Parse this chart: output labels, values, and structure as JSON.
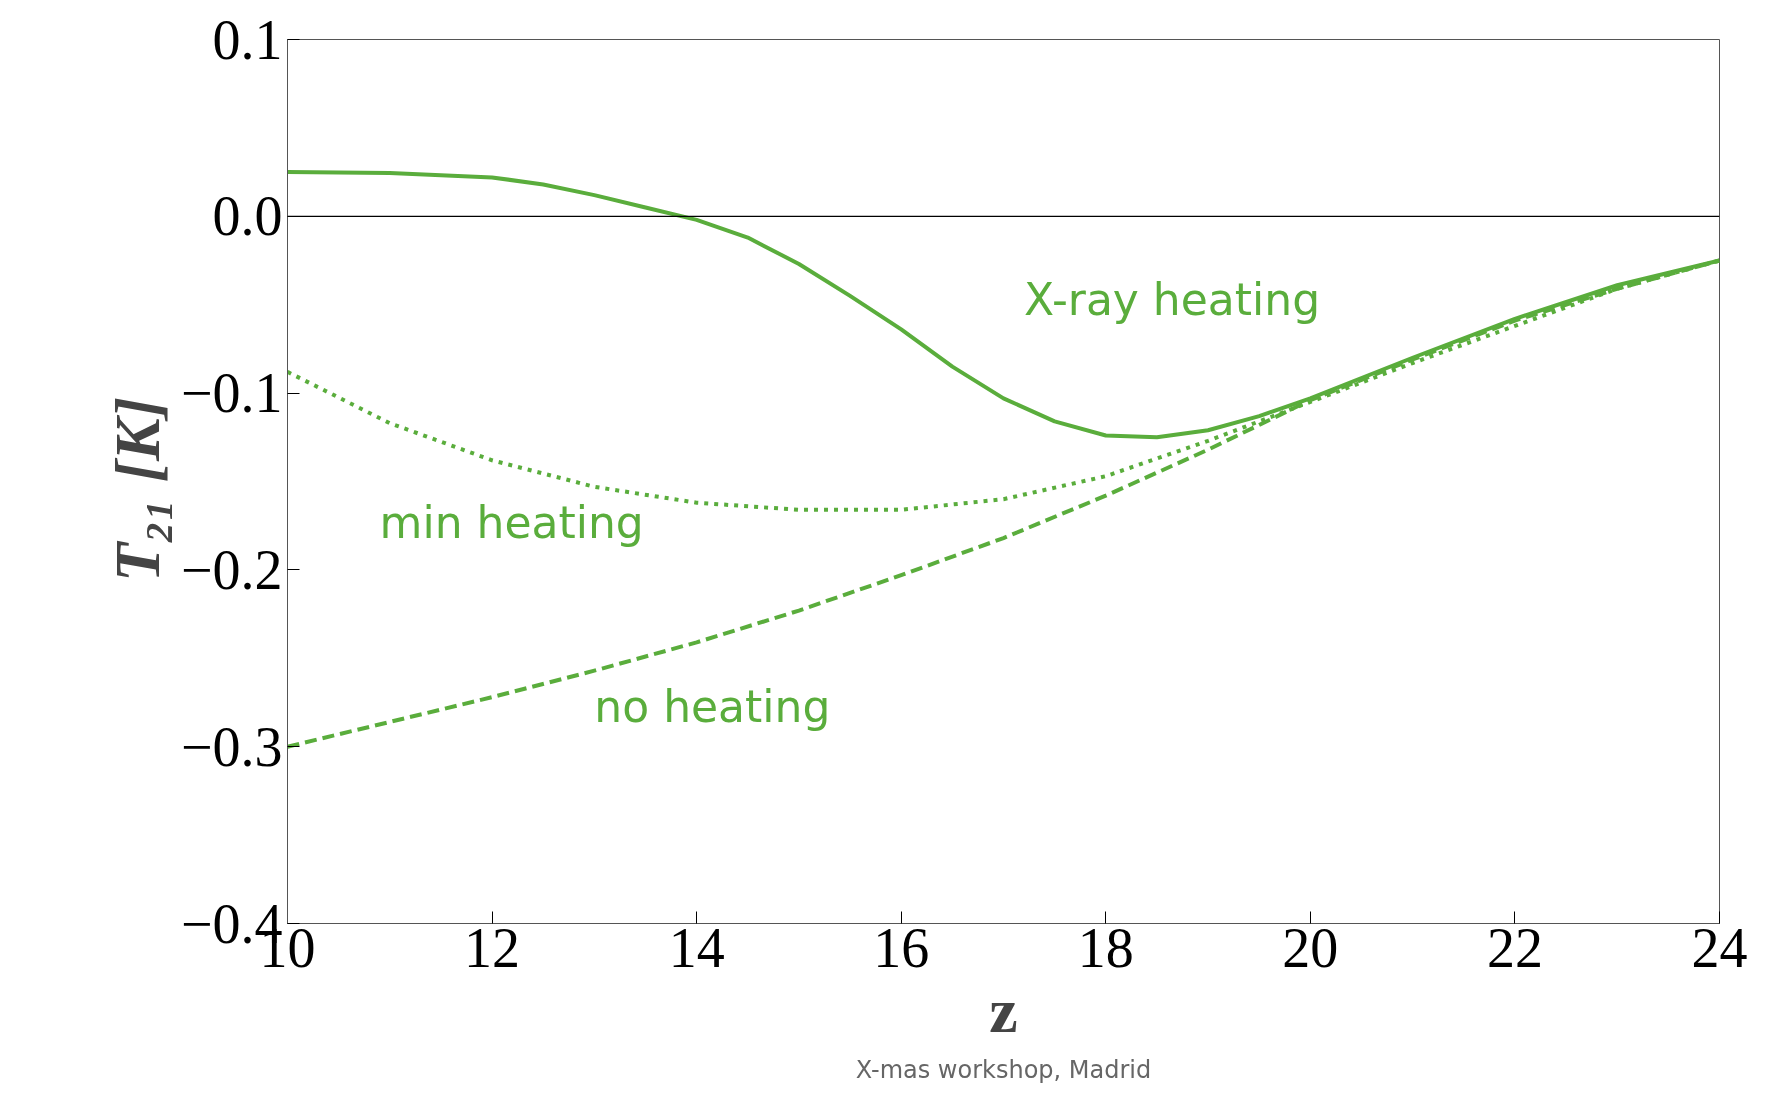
{
  "chart_data": {
    "type": "line",
    "xlabel": "z",
    "ylabel": "T₂₁  [K]",
    "xlim": [
      10,
      24
    ],
    "xticks": [
      10,
      12,
      14,
      16,
      18,
      20,
      22,
      24
    ],
    "ylim": [
      -0.4,
      0.1
    ],
    "yticks": [
      {
        "value": 0.1,
        "label": "0.1"
      },
      {
        "value": 0.0,
        "label": "0.0"
      },
      {
        "value": -0.1,
        "label": "−0.1"
      },
      {
        "value": -0.2,
        "label": "−0.2"
      },
      {
        "value": -0.3,
        "label": "−0.3"
      },
      {
        "value": -0.4,
        "label": "−0.4"
      }
    ],
    "grid": false,
    "ref_lines": [
      {
        "axis": "y",
        "value": 0,
        "label": null,
        "color": "#000000"
      }
    ],
    "annotations": [
      "X-mas workshop, Madrid"
    ],
    "series": [
      {
        "name": "X-ray heating",
        "color": "#5aad3c",
        "line_style": "solid",
        "x": [
          10,
          11,
          12,
          12.5,
          13,
          13.5,
          14,
          14.5,
          15,
          15.5,
          16,
          16.5,
          17,
          17.5,
          18,
          18.5,
          19,
          19.5,
          20,
          21,
          22,
          23,
          24
        ],
        "values": [
          0.025,
          0.0245,
          0.022,
          0.018,
          0.012,
          0.005,
          -0.002,
          -0.012,
          -0.027,
          -0.045,
          -0.064,
          -0.085,
          -0.103,
          -0.116,
          -0.124,
          -0.125,
          -0.121,
          -0.113,
          -0.103,
          -0.08,
          -0.058,
          -0.039,
          -0.025
        ]
      },
      {
        "name": "min heating",
        "color": "#5aad3c",
        "line_style": "dotted",
        "x": [
          10,
          11,
          12,
          13,
          14,
          15,
          16,
          17,
          18,
          19,
          20,
          21,
          22,
          23,
          24
        ],
        "values": [
          -0.088,
          -0.117,
          -0.138,
          -0.153,
          -0.162,
          -0.166,
          -0.166,
          -0.16,
          -0.147,
          -0.127,
          -0.105,
          -0.083,
          -0.062,
          -0.041,
          -0.025
        ]
      },
      {
        "name": "no heating",
        "color": "#5aad3c",
        "line_style": "dashed",
        "x": [
          10,
          11,
          12,
          13,
          14,
          15,
          16,
          17,
          18,
          19,
          20,
          21,
          22,
          23,
          24
        ],
        "values": [
          -0.3,
          -0.286,
          -0.272,
          -0.257,
          -0.241,
          -0.223,
          -0.203,
          -0.182,
          -0.158,
          -0.132,
          -0.104,
          -0.081,
          -0.059,
          -0.041,
          -0.025
        ]
      }
    ]
  }
}
